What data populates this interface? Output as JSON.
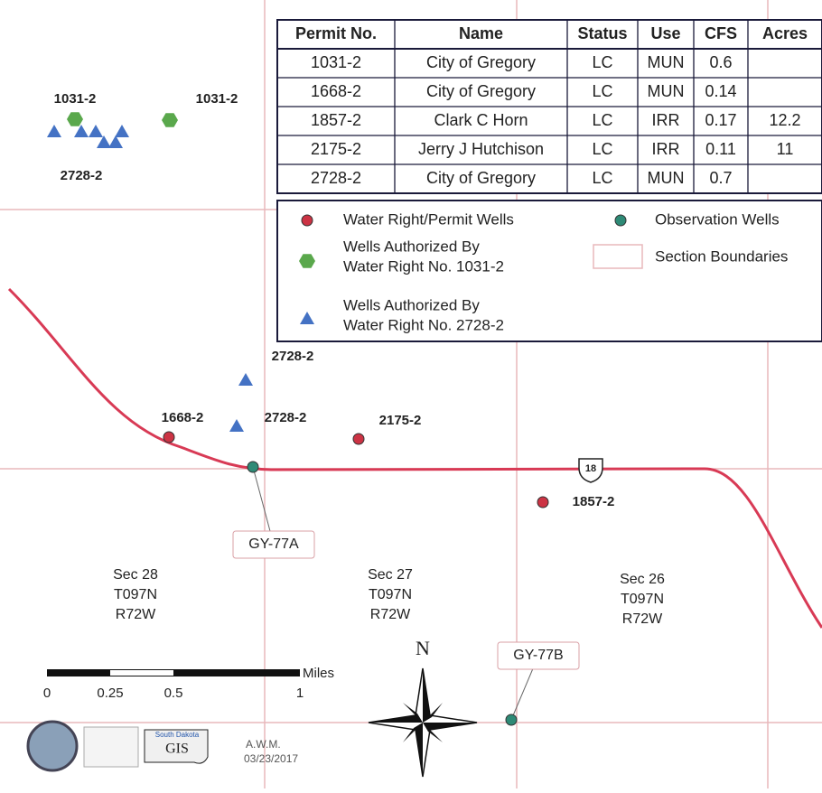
{
  "table": {
    "header": [
      "Permit No.",
      "Name",
      "Status",
      "Use",
      "CFS",
      "Acres"
    ],
    "rows": [
      [
        "1031-2",
        "City of Gregory",
        "LC",
        "MUN",
        0.6
      ],
      [
        "1668-2",
        "City of Gregory",
        "LC",
        "MUN",
        0.14
      ],
      [
        "1857-2",
        "Clark C Horn",
        "LC",
        "IRR",
        0.17,
        12.2
      ],
      [
        "2175-2",
        "Jerry J Hutchison",
        "LC",
        "IRR",
        0.11,
        11
      ],
      [
        "2728-2",
        "City of Gregory",
        "LC",
        "MUN",
        0.7
      ]
    ]
  },
  "legend": {
    "items": [
      [
        "Water Right/Permit Wells"
      ],
      [
        "Observation Wells"
      ],
      [
        "Wells Authorized By",
        "Water Right No. 1031-2"
      ],
      [
        "Section Boundaries"
      ],
      [
        "Wells Authorized By",
        "Water Right No. 2728-2"
      ]
    ]
  },
  "well_labels": [
    "1031-2",
    "1031-2",
    "2728-2",
    "2728-2",
    "2728-2",
    "1668-2",
    "2175-2",
    "1857-2"
  ],
  "observation_labels": [
    "GY-77A",
    "GY-77B"
  ],
  "sections": [
    [
      "Sec 28",
      "T097N",
      "R72W"
    ],
    [
      "Sec 27",
      "T097N",
      "R72W"
    ],
    [
      "Sec 26",
      "T097N",
      "R72W"
    ]
  ],
  "route_shield": "18",
  "scale": {
    "unit": "Miles",
    "ticks": [
      "0",
      "0.25",
      "0.5",
      "1"
    ]
  },
  "north": "N",
  "logos": [
    "South Dakota",
    "GIS"
  ],
  "credit": {
    "author": "A.W.M.",
    "date": "03/23/2017"
  }
}
